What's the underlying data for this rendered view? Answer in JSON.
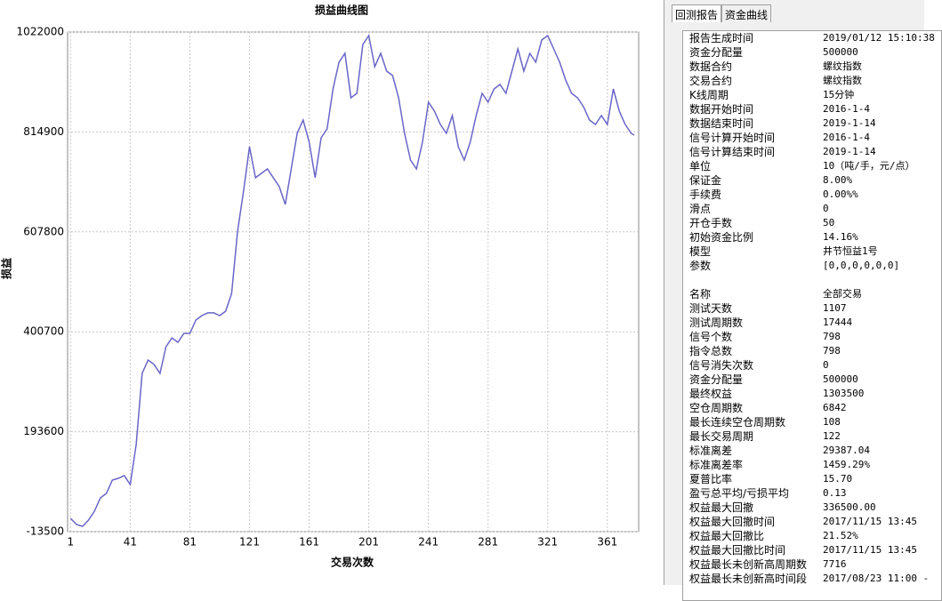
{
  "chart_data": {
    "type": "line",
    "title": "损益曲线图",
    "x_label": "交易次数",
    "y_label": "损益",
    "color": "#6a65c8",
    "grid": true,
    "xlim": [
      -1,
      382
    ],
    "xticks": [
      1,
      41,
      81,
      121,
      161,
      201,
      241,
      281,
      321,
      361
    ],
    "ylim": [
      -13500,
      1022000
    ],
    "yticks": [
      -13500,
      193600,
      400700,
      607800,
      814900,
      1022000
    ],
    "x": [
      1,
      5,
      9,
      13,
      17,
      21,
      25,
      29,
      33,
      37,
      41,
      45,
      49,
      53,
      57,
      61,
      65,
      69,
      73,
      77,
      81,
      85,
      89,
      93,
      97,
      101,
      105,
      109,
      113,
      117,
      121,
      125,
      129,
      133,
      137,
      141,
      145,
      149,
      153,
      157,
      161,
      165,
      169,
      173,
      177,
      181,
      185,
      189,
      193,
      197,
      201,
      205,
      209,
      213,
      217,
      221,
      225,
      229,
      233,
      237,
      241,
      245,
      249,
      253,
      257,
      261,
      265,
      269,
      273,
      277,
      281,
      285,
      289,
      293,
      297,
      301,
      305,
      309,
      313,
      317,
      321,
      325,
      329,
      333,
      337,
      341,
      345,
      349,
      353,
      357,
      361,
      365,
      369,
      373,
      377,
      379
    ],
    "values": [
      14000,
      1200,
      -2400,
      10500,
      29000,
      56500,
      65700,
      93400,
      97000,
      102600,
      84200,
      167000,
      314500,
      342100,
      333000,
      314500,
      369800,
      388000,
      379000,
      397400,
      397400,
      425000,
      434300,
      440000,
      440000,
      434300,
      443500,
      480300,
      609300,
      692200,
      784300,
      720000,
      729100,
      738300,
      720000,
      701400,
      664600,
      738300,
      812000,
      839600,
      793600,
      720000,
      802800,
      821200,
      904100,
      959400,
      977800,
      885700,
      894900,
      996200,
      1014700,
      950200,
      977800,
      941000,
      931800,
      885700,
      812000,
      756700,
      738300,
      793600,
      876500,
      858000,
      830400,
      812000,
      848800,
      784300,
      756700,
      793600,
      848800,
      894900,
      876500,
      904100,
      913300,
      894900,
      941000,
      987000,
      941000,
      977800,
      959400,
      1005400,
      1014700,
      987000,
      959400,
      922500,
      894900,
      885700,
      867100,
      839600,
      830400,
      848800,
      830400,
      904100,
      858000,
      830400,
      812000,
      808300
    ]
  },
  "panel": {
    "tabs": [
      "回测报告",
      "资金曲线"
    ],
    "params": [
      [
        "报告生成时间",
        "2019/01/12 15:10:38"
      ],
      [
        "资金分配量",
        "500000"
      ],
      [
        "数据合约",
        "螺纹指数"
      ],
      [
        "交易合约",
        "螺纹指数"
      ],
      [
        "K线周期",
        "15分钟"
      ],
      [
        "数据开始时间",
        "2016-1-4"
      ],
      [
        "数据结束时间",
        "2019-1-14"
      ],
      [
        "信号计算开始时间",
        "2016-1-4"
      ],
      [
        "信号计算结束时间",
        "2019-1-14"
      ],
      [
        "单位",
        "10（吨/手，元/点）"
      ],
      [
        "保证金",
        "8.00%"
      ],
      [
        "手续费",
        "0.00%%"
      ],
      [
        "滑点",
        "0"
      ],
      [
        "开仓手数",
        "50"
      ],
      [
        "初始资金比例",
        "14.16%"
      ],
      [
        "模型",
        "井节恒益1号"
      ],
      [
        "参数",
        "[0,0,0,0,0,0]"
      ]
    ],
    "stats": [
      [
        "名称",
        "全部交易"
      ],
      [
        "测试天数",
        "1107"
      ],
      [
        "测试周期数",
        "17444"
      ],
      [
        "信号个数",
        "798"
      ],
      [
        "指令总数",
        "798"
      ],
      [
        "信号消失次数",
        "0"
      ],
      [
        "资金分配量",
        "500000"
      ],
      [
        "最终权益",
        "1303500"
      ],
      [
        "空仓周期数",
        "6842"
      ],
      [
        "最长连续空仓周期数",
        "108"
      ],
      [
        "最长交易周期",
        "122"
      ],
      [
        "标准离差",
        "29387.04"
      ],
      [
        "标准离差率",
        "1459.29%"
      ],
      [
        "夏普比率",
        "15.70"
      ],
      [
        "盈亏总平均/亏损平均",
        "0.13"
      ],
      [
        "权益最大回撤",
        "336500.00"
      ],
      [
        "权益最大回撤时间",
        "2017/11/15 13:45"
      ],
      [
        "权益最大回撤比",
        "21.52%"
      ],
      [
        "权益最大回撤比时间",
        "2017/11/15 13:45"
      ],
      [
        "权益最长未创新高周期数",
        "7716"
      ],
      [
        "权益最长未创新高时间段",
        "2017/08/23 11:00 -"
      ]
    ]
  }
}
